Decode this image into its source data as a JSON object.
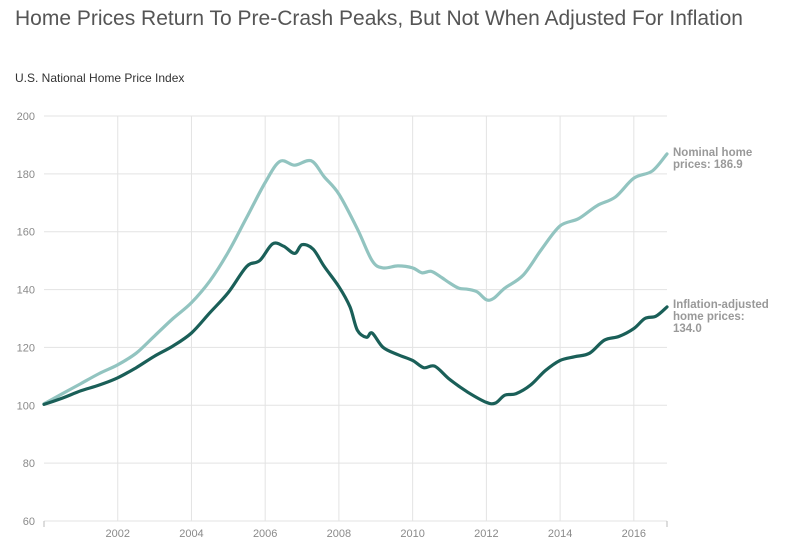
{
  "title": "Home Prices Return To Pre-Crash Peaks, But Not When Adjusted For Inflation",
  "subtitle": "U.S. National Home Price Index",
  "chart_data": {
    "type": "line",
    "title": "Home Prices Return To Pre-Crash Peaks, But Not When Adjusted For Inflation",
    "ylabel": "U.S. National Home Price Index",
    "xlabel": "",
    "xlim": [
      2000,
      2016.9
    ],
    "ylim": [
      60,
      200
    ],
    "xticks": [
      2002,
      2004,
      2006,
      2008,
      2010,
      2012,
      2014,
      2016
    ],
    "yticks": [
      60,
      80,
      100,
      120,
      140,
      160,
      180,
      200
    ],
    "grid": true,
    "series": [
      {
        "name": "Nominal home prices",
        "color": "#92c4c0",
        "end_label": [
          "Nominal home",
          "prices: 186.9"
        ],
        "points": [
          [
            2000.0,
            100.5
          ],
          [
            2000.5,
            104
          ],
          [
            2001.0,
            107.5
          ],
          [
            2001.5,
            111
          ],
          [
            2002.0,
            114
          ],
          [
            2002.5,
            118
          ],
          [
            2003.0,
            124
          ],
          [
            2003.5,
            130
          ],
          [
            2004.0,
            135.5
          ],
          [
            2004.5,
            143
          ],
          [
            2005.0,
            153
          ],
          [
            2005.5,
            165
          ],
          [
            2006.0,
            177
          ],
          [
            2006.4,
            184.3
          ],
          [
            2006.8,
            183
          ],
          [
            2007.25,
            184.5
          ],
          [
            2007.6,
            179
          ],
          [
            2008.0,
            173
          ],
          [
            2008.5,
            161
          ],
          [
            2008.9,
            150
          ],
          [
            2009.2,
            147.5
          ],
          [
            2009.6,
            148.2
          ],
          [
            2010.0,
            147.5
          ],
          [
            2010.25,
            145.8
          ],
          [
            2010.5,
            146.3
          ],
          [
            2010.75,
            144.5
          ],
          [
            2011.0,
            142.3
          ],
          [
            2011.25,
            140.5
          ],
          [
            2011.5,
            140.1
          ],
          [
            2011.75,
            139.2
          ],
          [
            2012.0,
            136.5
          ],
          [
            2012.2,
            137
          ],
          [
            2012.5,
            140.5
          ],
          [
            2013.0,
            145
          ],
          [
            2013.5,
            154
          ],
          [
            2014.0,
            162
          ],
          [
            2014.5,
            164.5
          ],
          [
            2015.0,
            169
          ],
          [
            2015.5,
            172
          ],
          [
            2016.0,
            178.5
          ],
          [
            2016.5,
            181
          ],
          [
            2016.9,
            186.9
          ]
        ]
      },
      {
        "name": "Inflation-adjusted home prices",
        "color": "#1a5f58",
        "end_label": [
          "Inflation-adjusted",
          "home prices:",
          "134.0"
        ],
        "points": [
          [
            2000.0,
            100.3
          ],
          [
            2000.5,
            102.5
          ],
          [
            2001.0,
            105
          ],
          [
            2001.5,
            107
          ],
          [
            2002.0,
            109.5
          ],
          [
            2002.5,
            113
          ],
          [
            2003.0,
            117
          ],
          [
            2003.5,
            120.5
          ],
          [
            2004.0,
            125
          ],
          [
            2004.5,
            132
          ],
          [
            2005.0,
            139
          ],
          [
            2005.5,
            148
          ],
          [
            2005.85,
            150
          ],
          [
            2006.2,
            155.8
          ],
          [
            2006.5,
            155
          ],
          [
            2006.8,
            152.5
          ],
          [
            2007.0,
            155.5
          ],
          [
            2007.3,
            154
          ],
          [
            2007.6,
            148
          ],
          [
            2008.0,
            141
          ],
          [
            2008.3,
            134
          ],
          [
            2008.5,
            126
          ],
          [
            2008.75,
            123.5
          ],
          [
            2008.9,
            125
          ],
          [
            2009.2,
            120
          ],
          [
            2009.6,
            117.5
          ],
          [
            2010.0,
            115.5
          ],
          [
            2010.3,
            113
          ],
          [
            2010.6,
            113.5
          ],
          [
            2011.0,
            109
          ],
          [
            2011.5,
            104.5
          ],
          [
            2012.0,
            101
          ],
          [
            2012.25,
            100.8
          ],
          [
            2012.5,
            103.5
          ],
          [
            2012.8,
            104
          ],
          [
            2013.2,
            107
          ],
          [
            2013.6,
            112
          ],
          [
            2014.0,
            115.5
          ],
          [
            2014.4,
            116.8
          ],
          [
            2014.8,
            118
          ],
          [
            2015.2,
            122.5
          ],
          [
            2015.6,
            123.8
          ],
          [
            2016.0,
            126.5
          ],
          [
            2016.3,
            130
          ],
          [
            2016.6,
            130.8
          ],
          [
            2016.9,
            134.0
          ]
        ]
      }
    ]
  }
}
